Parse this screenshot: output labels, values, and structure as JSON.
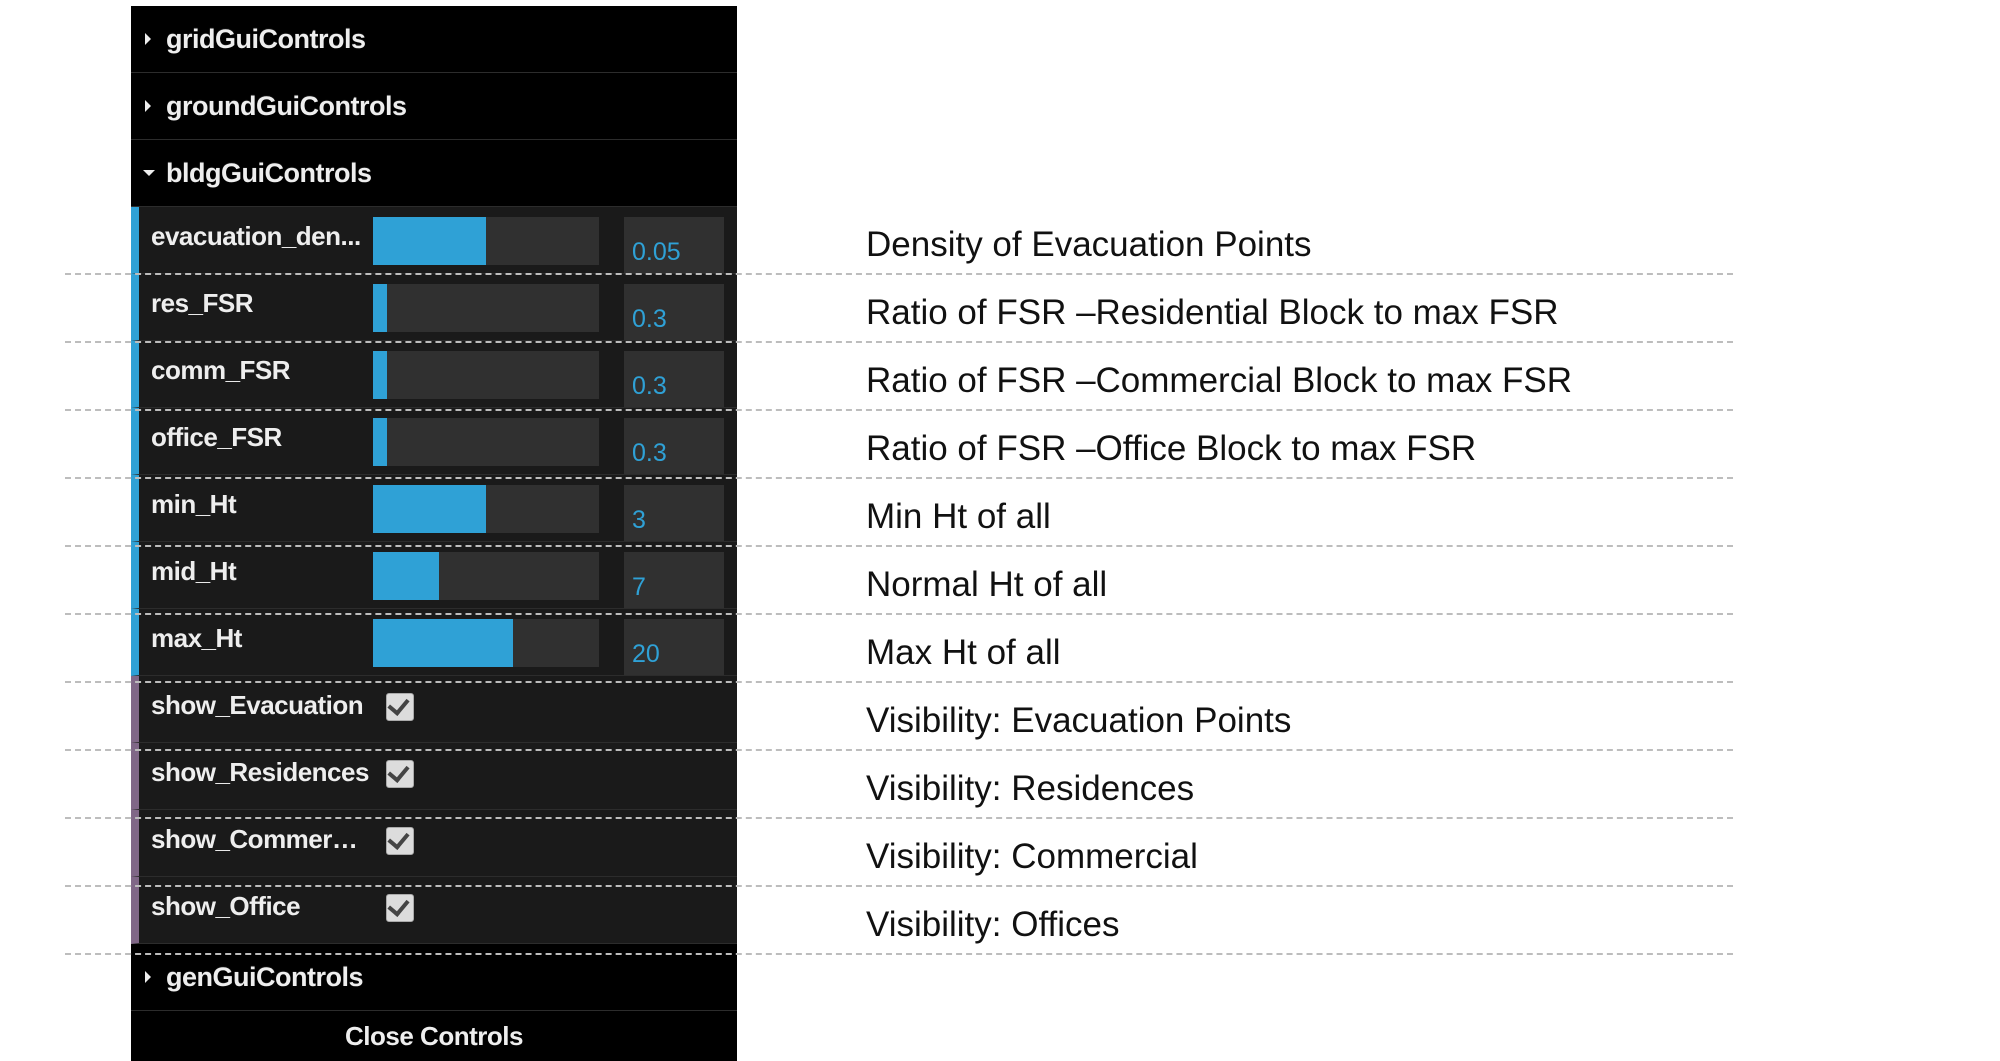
{
  "folders_top": [
    {
      "name": "gridGuiControls",
      "state": "closed"
    },
    {
      "name": "groundGuiControls",
      "state": "closed"
    },
    {
      "name": "bldgGuiControls",
      "state": "open"
    }
  ],
  "controls": [
    {
      "label": "evacuation_den...",
      "type": "number",
      "value": "0.05",
      "fill": 0.5
    },
    {
      "label": "res_FSR",
      "type": "number",
      "value": "0.3",
      "fill": 0.06
    },
    {
      "label": "comm_FSR",
      "type": "number",
      "value": "0.3",
      "fill": 0.06
    },
    {
      "label": "office_FSR",
      "type": "number",
      "value": "0.3",
      "fill": 0.06
    },
    {
      "label": "min_Ht",
      "type": "number",
      "value": "3",
      "fill": 0.5
    },
    {
      "label": "mid_Ht",
      "type": "number",
      "value": "7",
      "fill": 0.29
    },
    {
      "label": "max_Ht",
      "type": "number",
      "value": "20",
      "fill": 0.62
    },
    {
      "label": "show_Evacuation",
      "type": "boolean",
      "checked": true
    },
    {
      "label": "show_Residences",
      "type": "boolean",
      "checked": true
    },
    {
      "label": "show_Commercial",
      "type": "boolean",
      "checked": true
    },
    {
      "label": "show_Office",
      "type": "boolean",
      "checked": true
    }
  ],
  "folders_bottom": [
    {
      "name": "genGuiControls",
      "state": "closed"
    }
  ],
  "close_label": "Close Controls",
  "annotations": [
    "Density of Evacuation Points",
    "Ratio of FSR –Residential Block to max FSR",
    "Ratio of FSR –Commercial Block to max FSR",
    "Ratio of FSR –Office Block to max FSR",
    "Min Ht of all",
    "Normal Ht of all",
    "Max Ht of all",
    "Visibility: Evacuation Points",
    "Visibility: Residences",
    "Visibility: Commercial",
    "Visibility: Offices"
  ],
  "colors": {
    "number_accent": "#2fa1d6",
    "boolean_accent": "#806787",
    "panel_bg": "#1a1a1a",
    "folder_bg": "#000000"
  }
}
